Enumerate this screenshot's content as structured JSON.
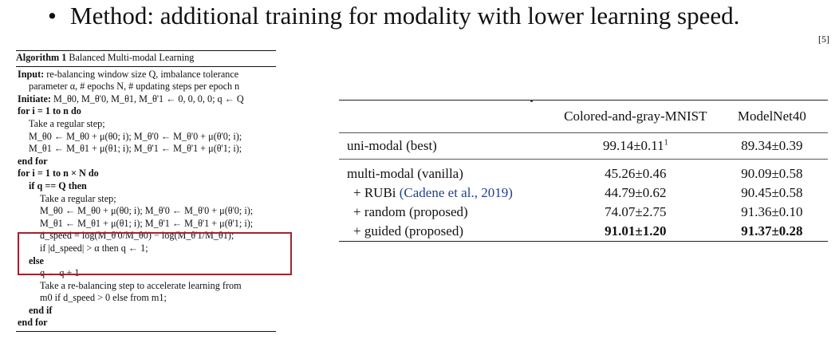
{
  "slide": {
    "bullet": "•",
    "heading": "Method: additional training for modality with lower learning speed.",
    "reference": "[5]"
  },
  "algorithm": {
    "label": "Algorithm 1",
    "title": "Balanced Multi-modal Learning",
    "input_kw": "Input:",
    "input_text": "re-balancing window size Q, imbalance tolerance parameter α, # epochs N, # updating steps per epoch n",
    "init_kw": "Initiate:",
    "init_text": "M_θ0, M_θ'0, M_θ1, M_θ'1 ← 0, 0, 0, 0; q ← Q",
    "lines": [
      "for i = 1 to n do",
      "Take a regular step;",
      "M_θ0 ← M_θ0 + μ(θ0; i); M_θ'0 ← M_θ'0 + μ(θ'0; i);",
      "M_θ1 ← M_θ1 + μ(θ1; i); M_θ'1 ← M_θ'1 + μ(θ'1; i);",
      "end for",
      "for i = 1 to n × N do",
      "if q == Q then",
      "Take a regular step;",
      "M_θ0 ← M_θ0 + μ(θ0; i); M_θ'0 ← M_θ'0 + μ(θ'0; i);",
      "M_θ1 ← M_θ1 + μ(θ1; i); M_θ'1 ← M_θ'1 + μ(θ'1; i);",
      "d_speed = log(M_θ'0/M_θ0) − log(M_θ'1/M_θ1);",
      "if |d_speed| > α then q ← 1;",
      "else",
      "q ← q + 1",
      "Take a re-balancing step to accelerate learning from",
      "m0 if d_speed > 0 else from m1;",
      "end if",
      "end for"
    ]
  },
  "table": {
    "headers": [
      "",
      "Colored-and-gray-MNIST",
      "ModelNet40"
    ],
    "rows": [
      {
        "label": "uni-modal (best)",
        "mnist": "99.14±0.11",
        "mnist_sup": "1",
        "modelnet": "89.34±0.39"
      },
      {
        "label": "multi-modal (vanilla)",
        "mnist": "45.26±0.46",
        "modelnet": "90.09±0.58"
      },
      {
        "label": "+ RUBi",
        "cite": "(Cadene et al., 2019)",
        "mnist": "44.79±0.62",
        "modelnet": "90.45±0.58"
      },
      {
        "label": "+ random (proposed)",
        "mnist": "74.07±2.75",
        "modelnet": "91.36±0.10"
      },
      {
        "label": "+ guided (proposed)",
        "mnist": "91.01±1.20",
        "modelnet": "91.37±0.28"
      }
    ]
  }
}
